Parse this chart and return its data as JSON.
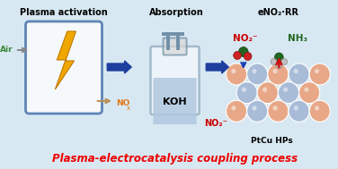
{
  "bg_color": "#d8e8f2",
  "border_color": "#8aaabf",
  "title1": "Plasma activation",
  "title2": "Absorption",
  "title3": "eNO₂·RR",
  "label_air": "Air",
  "label_nox": "NO",
  "label_nox_sub": "x",
  "label_koh": "KOH",
  "label_no2_bottom": "NO₂⁻",
  "label_no2_top": "NO₂⁻",
  "label_nh3": "NH₃",
  "label_ptcu": "PtCu HPs",
  "bottom_text": "Plasma-electrocatalysis coupling process",
  "arrow_color": "#1e3fa0",
  "air_color": "#3a8a3a",
  "nox_color": "#e07818",
  "no2_label_color": "#cc0000",
  "nh3_color": "#226622",
  "ptcu_blue": "#a8bcd8",
  "ptcu_peach": "#e8a888",
  "plasma_box_edge": "#3060a0",
  "koh_bottle_edge": "#7090a8",
  "koh_liquid": "#b0c8e0",
  "lightning_fill": "#f0a800",
  "lightning_edge": "#c07800",
  "bottom_text_color": "#ee0000",
  "molecule_green": "#226622",
  "molecule_red": "#cc2222",
  "molecule_gray": "#c0c0c0",
  "arrow_blue_mol": "#1840b0",
  "arrow_red_mol": "#cc1111"
}
